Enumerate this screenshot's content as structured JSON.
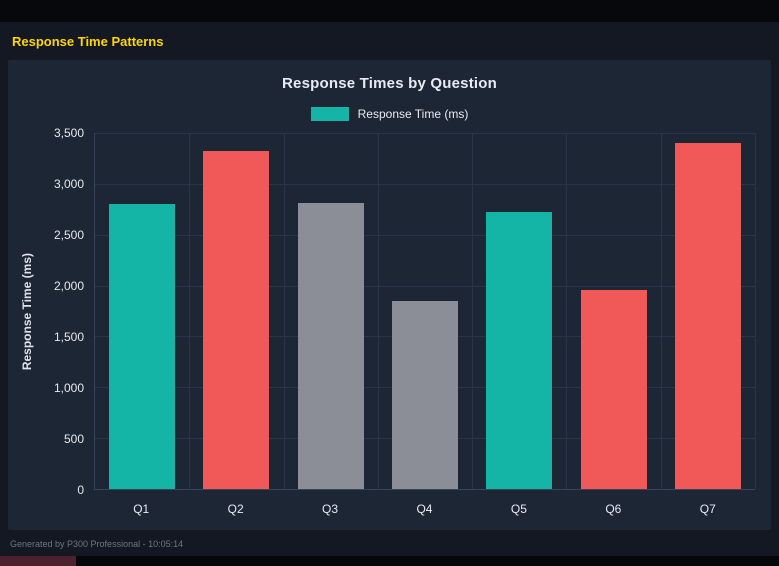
{
  "page": {
    "title": "Response Time Patterns",
    "footer": "Generated by P300 Professional - 10:05:14"
  },
  "colors": {
    "page_background": "#141823",
    "panel_background": "#1d2634",
    "title_yellow": "#ffd700",
    "teal": "#14b5a6",
    "red": "#f15858",
    "gray": "#8b8e96",
    "bottom_accent": "#4e222c"
  },
  "chart_data": {
    "type": "bar",
    "title": "Response Times by Question",
    "legend": [
      {
        "label": "Response Time (ms)",
        "color": "#14b5a6"
      }
    ],
    "legend_position": "top",
    "categories": [
      "Q1",
      "Q2",
      "Q3",
      "Q4",
      "Q5",
      "Q6",
      "Q7"
    ],
    "values": [
      2800,
      3320,
      2810,
      1850,
      2720,
      1960,
      3400
    ],
    "bar_colors": [
      "#14b5a6",
      "#f15858",
      "#8b8e96",
      "#8b8e96",
      "#14b5a6",
      "#f15858",
      "#f15858"
    ],
    "xlabel": "",
    "ylabel": "Response Time (ms)",
    "ylim": [
      0,
      3500
    ],
    "ytick_step": 500,
    "ytick_labels": [
      "0",
      "500",
      "1,000",
      "1,500",
      "2,000",
      "2,500",
      "3,000",
      "3,500"
    ],
    "grid": true
  }
}
